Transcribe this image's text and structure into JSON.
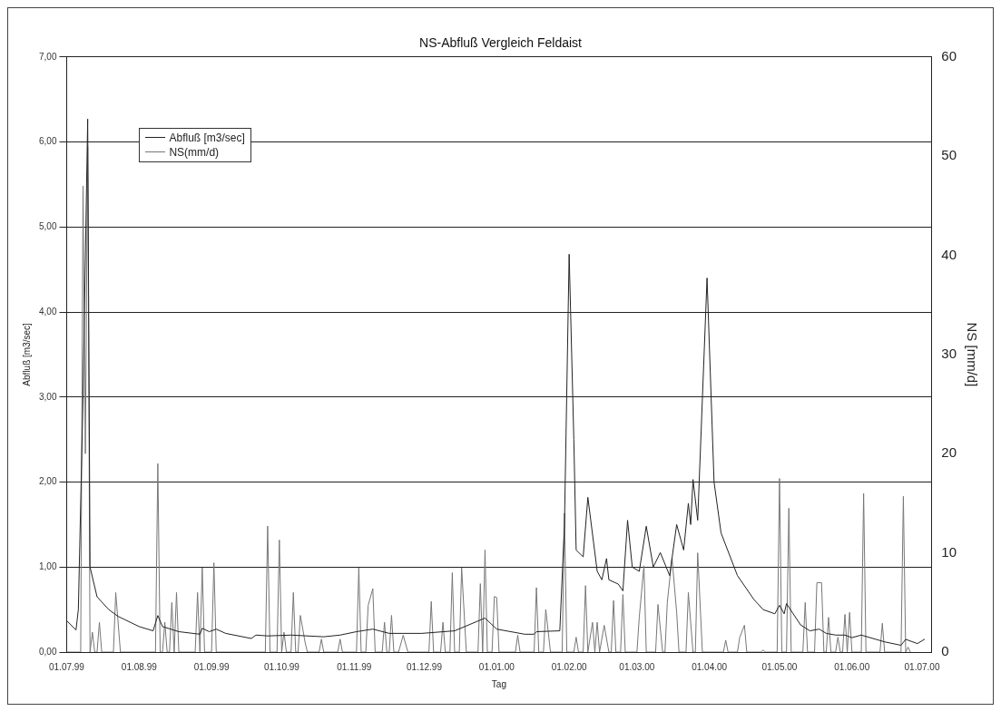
{
  "chart_data": {
    "type": "line",
    "title": "NS-Abfluß Vergleich Feldaist",
    "xlabel": "Tag",
    "ylabel": "Abfluß [m3/sec]",
    "y2label": "NS [mm/d]",
    "xlim": [
      "1999-07-01",
      "2000-07-05"
    ],
    "xticks": [
      {
        "value": "1999-07-01",
        "label": "01.07.99"
      },
      {
        "value": "1999-08-01",
        "label": "01.08.99"
      },
      {
        "value": "1999-09-01",
        "label": "01.09.99"
      },
      {
        "value": "1999-10-01",
        "label": "01.10.99"
      },
      {
        "value": "1999-11-01",
        "label": "01.11.99"
      },
      {
        "value": "1999-12-01",
        "label": "01.12.99"
      },
      {
        "value": "2000-01-01",
        "label": "01.01.00"
      },
      {
        "value": "2000-02-01",
        "label": "01.02.00"
      },
      {
        "value": "2000-03-01",
        "label": "01.03.00"
      },
      {
        "value": "2000-04-01",
        "label": "01.04.00"
      },
      {
        "value": "2000-05-01",
        "label": "01.05.00"
      },
      {
        "value": "2000-06-01",
        "label": "01.06.00"
      },
      {
        "value": "2000-07-01",
        "label": "01.07.00"
      }
    ],
    "ylim": [
      0,
      7
    ],
    "yticks": [
      {
        "value": 0,
        "label": "0,00"
      },
      {
        "value": 1,
        "label": "1,00"
      },
      {
        "value": 2,
        "label": "2,00"
      },
      {
        "value": 3,
        "label": "3,00"
      },
      {
        "value": 4,
        "label": "4,00"
      },
      {
        "value": 5,
        "label": "5,00"
      },
      {
        "value": 6,
        "label": "6,00"
      },
      {
        "value": 7,
        "label": "7,00"
      }
    ],
    "y2lim": [
      0,
      60
    ],
    "y2ticks": [
      0,
      10,
      20,
      30,
      40,
      50,
      60
    ],
    "grid": "y",
    "legend": "top left",
    "marker": "none",
    "line_style": "solid",
    "series": [
      {
        "name": "Abfluß [m3/sec]",
        "color": "#222222",
        "axis": "y",
        "x": [
          "1999-07-01",
          "1999-07-05",
          "1999-07-06",
          "1999-07-08",
          "1999-07-10",
          "1999-07-11",
          "1999-07-14",
          "1999-07-19",
          "1999-07-23",
          "1999-07-26",
          "1999-08-01",
          "1999-08-07",
          "1999-08-09",
          "1999-08-11",
          "1999-08-18",
          "1999-08-27",
          "1999-08-28",
          "1999-08-31",
          "1999-09-03",
          "1999-09-07",
          "1999-09-18",
          "1999-09-20",
          "1999-09-25",
          "1999-10-05",
          "1999-10-19",
          "1999-10-26",
          "1999-11-02",
          "1999-11-09",
          "1999-11-16",
          "1999-11-30",
          "1999-12-14",
          "1999-12-27",
          "2000-01-01",
          "2000-01-13",
          "2000-01-17",
          "2000-01-18",
          "2000-01-28",
          "2000-01-30",
          "2000-02-01",
          "2000-02-03",
          "2000-02-04",
          "2000-02-07",
          "2000-02-09",
          "2000-02-13",
          "2000-02-15",
          "2000-02-17",
          "2000-02-18",
          "2000-02-22",
          "2000-02-24",
          "2000-02-26",
          "2000-02-28",
          "2000-03-02",
          "2000-03-05",
          "2000-03-08",
          "2000-03-11",
          "2000-03-15",
          "2000-03-18",
          "2000-03-21",
          "2000-03-23",
          "2000-03-24",
          "2000-03-25",
          "2000-03-27",
          "2000-03-31",
          "2000-04-03",
          "2000-04-06",
          "2000-04-13",
          "2000-04-20",
          "2000-04-24",
          "2000-04-29",
          "2000-05-01",
          "2000-05-03",
          "2000-05-04",
          "2000-05-10",
          "2000-05-14",
          "2000-05-18",
          "2000-05-21",
          "2000-05-25",
          "2000-05-29",
          "2000-06-01",
          "2000-06-05",
          "2000-06-15",
          "2000-06-22",
          "2000-06-24",
          "2000-06-29",
          "2000-07-02"
        ],
        "values": [
          0.37,
          0.26,
          0.5,
          3,
          6.27,
          1.0,
          0.65,
          0.5,
          0.42,
          0.38,
          0.3,
          0.25,
          0.43,
          0.3,
          0.24,
          0.21,
          0.28,
          0.24,
          0.27,
          0.22,
          0.16,
          0.2,
          0.19,
          0.2,
          0.18,
          0.2,
          0.24,
          0.27,
          0.22,
          0.22,
          0.25,
          0.4,
          0.27,
          0.21,
          0.21,
          0.24,
          0.25,
          1.5,
          4.68,
          2.5,
          1.2,
          1.12,
          1.82,
          0.95,
          0.85,
          1.1,
          0.85,
          0.8,
          0.72,
          1.55,
          1.0,
          0.95,
          1.48,
          1.0,
          1.17,
          0.9,
          1.5,
          1.2,
          1.75,
          1.5,
          2.03,
          1.55,
          4.4,
          2.0,
          1.4,
          0.9,
          0.62,
          0.5,
          0.45,
          0.55,
          0.45,
          0.57,
          0.32,
          0.25,
          0.27,
          0.22,
          0.2,
          0.2,
          0.17,
          0.2,
          0.12,
          0.08,
          0.15,
          0.1,
          0.15
        ]
      },
      {
        "name": "NS(mm/d)",
        "color": "#777777",
        "axis": "y2",
        "x": [
          "1999-07-01",
          "1999-07-07",
          "1999-07-08",
          "1999-07-09",
          "1999-07-10",
          "1999-07-11",
          "1999-07-12",
          "1999-07-13",
          "1999-07-14",
          "1999-07-15",
          "1999-07-16",
          "1999-07-21",
          "1999-07-22",
          "1999-07-24",
          "1999-08-08",
          "1999-08-09",
          "1999-08-10",
          "1999-08-11",
          "1999-08-12",
          "1999-08-13",
          "1999-08-14",
          "1999-08-15",
          "1999-08-16",
          "1999-08-17",
          "1999-08-18",
          "1999-08-25",
          "1999-08-26",
          "1999-08-27",
          "1999-08-28",
          "1999-08-29",
          "1999-09-01",
          "1999-09-02",
          "1999-09-03",
          "1999-09-24",
          "1999-09-25",
          "1999-09-26",
          "1999-09-29",
          "1999-09-30",
          "1999-10-01",
          "1999-10-02",
          "1999-10-03",
          "1999-10-05",
          "1999-10-06",
          "1999-10-07",
          "1999-10-08",
          "1999-10-09",
          "1999-10-11",
          "1999-10-12",
          "1999-10-17",
          "1999-10-18",
          "1999-10-19",
          "1999-10-25",
          "1999-10-26",
          "1999-10-27",
          "1999-11-02",
          "1999-11-03",
          "1999-11-04",
          "1999-11-06",
          "1999-11-07",
          "1999-11-09",
          "1999-11-10",
          "1999-11-13",
          "1999-11-14",
          "1999-11-15",
          "1999-11-16",
          "1999-11-17",
          "1999-11-18",
          "1999-11-20",
          "1999-11-22",
          "1999-11-24",
          "1999-12-03",
          "1999-12-04",
          "1999-12-05",
          "1999-12-08",
          "1999-12-09",
          "1999-12-10",
          "1999-12-12",
          "1999-12-13",
          "1999-12-14",
          "1999-12-16",
          "1999-12-17",
          "1999-12-19",
          "1999-12-24",
          "1999-12-25",
          "1999-12-26",
          "1999-12-27",
          "1999-12-28",
          "1999-12-30",
          "1999-12-31",
          "2000-01-01",
          "2000-01-02",
          "2000-01-09",
          "2000-01-10",
          "2000-01-11",
          "2000-01-17",
          "2000-01-18",
          "2000-01-19",
          "2000-01-21",
          "2000-01-22",
          "2000-01-24",
          "2000-01-29",
          "2000-01-30",
          "2000-01-31",
          "2000-02-03",
          "2000-02-04",
          "2000-02-05",
          "2000-02-07",
          "2000-02-08",
          "2000-02-09",
          "2000-02-11",
          "2000-02-12",
          "2000-02-13",
          "2000-02-14",
          "2000-02-16",
          "2000-02-18",
          "2000-02-19",
          "2000-02-20",
          "2000-02-21",
          "2000-02-23",
          "2000-02-24",
          "2000-02-25",
          "2000-03-01",
          "2000-03-02",
          "2000-03-04",
          "2000-03-05",
          "2000-03-09",
          "2000-03-10",
          "2000-03-12",
          "2000-03-13",
          "2000-03-14",
          "2000-03-16",
          "2000-03-18",
          "2000-03-19",
          "2000-03-22",
          "2000-03-23",
          "2000-03-25",
          "2000-03-26",
          "2000-03-27",
          "2000-03-29",
          "2000-04-07",
          "2000-04-08",
          "2000-04-09",
          "2000-04-13",
          "2000-04-14",
          "2000-04-16",
          "2000-04-17",
          "2000-04-23",
          "2000-04-24",
          "2000-04-25",
          "2000-04-30",
          "2000-05-01",
          "2000-05-02",
          "2000-05-04",
          "2000-05-05",
          "2000-05-06",
          "2000-05-11",
          "2000-05-12",
          "2000-05-13",
          "2000-05-16",
          "2000-05-17",
          "2000-05-19",
          "2000-05-20",
          "2000-05-21",
          "2000-05-22",
          "2000-05-23",
          "2000-05-25",
          "2000-05-26",
          "2000-05-27",
          "2000-05-28",
          "2000-05-29",
          "2000-05-30",
          "2000-05-31",
          "2000-06-01",
          "2000-06-05",
          "2000-06-06",
          "2000-06-07",
          "2000-06-13",
          "2000-06-14",
          "2000-06-15",
          "2000-06-22",
          "2000-06-23",
          "2000-06-24",
          "2000-06-25",
          "2000-06-26"
        ],
        "values": [
          0,
          0,
          47,
          20,
          51,
          0,
          2,
          0,
          0,
          3,
          0,
          0,
          6,
          0,
          0,
          19,
          0,
          0,
          3,
          0,
          0,
          5,
          0,
          6,
          0,
          0,
          6,
          0,
          8.5,
          0,
          0,
          9,
          0,
          0,
          12.7,
          0,
          0,
          11.3,
          0,
          2,
          0,
          0,
          6,
          0,
          0,
          3.7,
          1,
          0,
          0,
          1.3,
          0,
          0,
          1.3,
          0,
          0,
          8.5,
          0,
          0,
          4.7,
          6.4,
          0,
          0,
          3,
          0,
          0,
          3.7,
          0,
          0,
          1.7,
          0,
          0,
          5.1,
          0,
          0,
          3,
          0,
          0,
          8,
          0,
          0,
          8.5,
          0,
          0,
          6.9,
          0,
          10.3,
          0,
          0,
          5.6,
          5.5,
          0,
          0,
          1.7,
          0,
          0,
          6.5,
          0,
          0,
          4.3,
          0,
          0,
          14,
          0,
          0,
          1.5,
          0,
          0,
          6.7,
          0,
          3,
          0,
          3,
          0,
          2.7,
          0,
          0,
          5.2,
          0,
          0,
          5.8,
          0,
          0,
          3.5,
          8.7,
          0,
          0,
          4.8,
          0,
          0,
          5,
          9.5,
          4,
          0,
          0,
          6,
          0,
          0,
          10,
          0,
          0,
          1.2,
          0,
          0,
          1.5,
          2.7,
          0,
          0,
          0.2,
          0,
          0,
          17.5,
          0,
          0,
          14.5,
          0,
          0,
          5,
          0,
          0,
          7,
          7,
          0,
          0,
          3.5,
          0,
          0,
          1.5,
          0,
          0,
          3.8,
          0,
          4,
          0,
          0,
          16,
          0,
          0,
          2.9,
          0,
          0,
          15.7,
          0,
          0.5,
          0
        ]
      }
    ]
  }
}
